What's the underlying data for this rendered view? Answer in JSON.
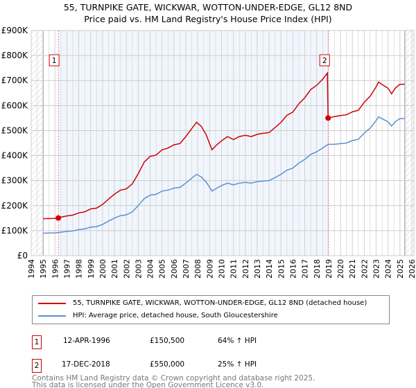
{
  "title_line1": "55, TURNPIKE GATE, WICKWAR, WOTTON-UNDER-EDGE, GL12 8ND",
  "title_line2": "Price paid vs. HM Land Registry's House Price Index (HPI)",
  "chart_data": {
    "type": "line",
    "xlim": [
      1994,
      2026
    ],
    "ylim": [
      0,
      900000
    ],
    "x_ticks": [
      "1994",
      "1995",
      "1996",
      "1997",
      "1998",
      "1999",
      "2000",
      "2001",
      "2002",
      "2003",
      "2004",
      "2005",
      "2006",
      "2007",
      "2008",
      "2009",
      "2010",
      "2011",
      "2012",
      "2013",
      "2014",
      "2015",
      "2016",
      "2017",
      "2018",
      "2019",
      "2020",
      "2021",
      "2022",
      "2023",
      "2024",
      "2025",
      "2026"
    ],
    "y_ticks": [
      {
        "v": 0,
        "label": "£0"
      },
      {
        "v": 100000,
        "label": "£100K"
      },
      {
        "v": 200000,
        "label": "£200K"
      },
      {
        "v": 300000,
        "label": "£300K"
      },
      {
        "v": 400000,
        "label": "£400K"
      },
      {
        "v": 500000,
        "label": "£500K"
      },
      {
        "v": 600000,
        "label": "£600K"
      },
      {
        "v": 700000,
        "label": "£700K"
      },
      {
        "v": 800000,
        "label": "£800K"
      },
      {
        "v": 900000,
        "label": "£900K"
      }
    ],
    "grid": true,
    "hatched_ranges": [
      [
        1994,
        1995
      ],
      [
        2025.4,
        2026.2
      ]
    ],
    "shaded_range": [
      1996.28,
      2018.96
    ],
    "series": [
      {
        "name": "55, TURNPIKE GATE, WICKWAR, WOTTON-UNDER-EDGE, GL12 8ND (detached house)",
        "color": "#cc0000",
        "x": [
          1995,
          1996,
          1996.28,
          1996.5,
          1997,
          1997.5,
          1998,
          1998.5,
          1999,
          1999.5,
          2000,
          2000.5,
          2001,
          2001.5,
          2002,
          2002.5,
          2003,
          2003.5,
          2004,
          2004.5,
          2005,
          2005.5,
          2006,
          2006.5,
          2007,
          2007.5,
          2007.9,
          2008.3,
          2008.7,
          2009.2,
          2009.6,
          2010,
          2010.5,
          2011,
          2011.5,
          2012,
          2012.5,
          2013,
          2013.5,
          2014,
          2014.5,
          2015,
          2015.5,
          2016,
          2016.5,
          2017,
          2017.5,
          2018,
          2018.5,
          2018.9,
          2018.96,
          2019.5,
          2020,
          2020.5,
          2021,
          2021.5,
          2022,
          2022.5,
          2023,
          2023.2,
          2023.6,
          2024,
          2024.3,
          2024.6,
          2025,
          2025.4
        ],
        "y": [
          148,
          149,
          150.5,
          154,
          159,
          162,
          171,
          175,
          187,
          190,
          205,
          226,
          246,
          262,
          267,
          287,
          328,
          374,
          397,
          402,
          423,
          430,
          443,
          448,
          476,
          508,
          533,
          517,
          484,
          423,
          443,
          459,
          476,
          464,
          476,
          481,
          476,
          485,
          489,
          492,
          512,
          533,
          561,
          574,
          607,
          631,
          664,
          681,
          705,
          730,
          550,
          556,
          560,
          563,
          575,
          581,
          613,
          638,
          675,
          694,
          681,
          669,
          647,
          669,
          685,
          685
        ],
        "y_unit": "thousand GBP"
      },
      {
        "name": "HPI: Average price, detached house, South Gloucestershire",
        "color": "#5b8fd4",
        "x": [
          1995,
          1996,
          1996.5,
          1997,
          1997.5,
          1998,
          1998.5,
          1999,
          1999.5,
          2000,
          2000.5,
          2001,
          2001.5,
          2002,
          2002.5,
          2003,
          2003.5,
          2004,
          2004.5,
          2005,
          2005.5,
          2006,
          2006.5,
          2007,
          2007.5,
          2007.9,
          2008.3,
          2008.7,
          2009.2,
          2009.6,
          2010,
          2010.5,
          2011,
          2011.5,
          2012,
          2012.5,
          2013,
          2013.5,
          2014,
          2014.5,
          2015,
          2015.5,
          2016,
          2016.5,
          2017,
          2017.5,
          2018,
          2018.5,
          2018.96,
          2019.5,
          2020,
          2020.5,
          2021,
          2021.5,
          2022,
          2022.5,
          2023,
          2023.2,
          2023.6,
          2024,
          2024.3,
          2024.6,
          2025,
          2025.4
        ],
        "y": [
          90,
          91,
          94,
          97,
          99,
          104,
          107,
          114,
          116,
          125,
          138,
          150,
          160,
          163,
          175,
          200,
          228,
          242,
          245,
          258,
          262,
          270,
          273,
          290,
          310,
          325,
          315,
          295,
          258,
          270,
          280,
          290,
          283,
          290,
          293,
          290,
          296,
          298,
          300,
          312,
          325,
          342,
          350,
          370,
          385,
          405,
          415,
          430,
          445,
          445,
          448,
          450,
          460,
          465,
          490,
          510,
          540,
          555,
          545,
          535,
          518,
          535,
          548,
          548
        ],
        "y_unit": "thousand GBP"
      }
    ],
    "annotations": [
      {
        "label": "1",
        "x": 1996.28,
        "y": 150500
      },
      {
        "label": "2",
        "x": 2018.96,
        "y": 550000
      }
    ],
    "legend_position": "below"
  },
  "legend": {
    "property": "55, TURNPIKE GATE, WICKWAR, WOTTON-UNDER-EDGE, GL12 8ND (detached house)",
    "hpi": "HPI: Average price, detached house, South Gloucestershire"
  },
  "sales": [
    {
      "num": "1",
      "date": "12-APR-1996",
      "price": "£150,500",
      "hpi": "64% ↑ HPI"
    },
    {
      "num": "2",
      "date": "17-DEC-2018",
      "price": "£550,000",
      "hpi": "25% ↑ HPI"
    }
  ],
  "footer_line1": "Contains HM Land Registry data © Crown copyright and database right 2025.",
  "footer_line2": "This data is licensed under the Open Government Licence v3.0."
}
